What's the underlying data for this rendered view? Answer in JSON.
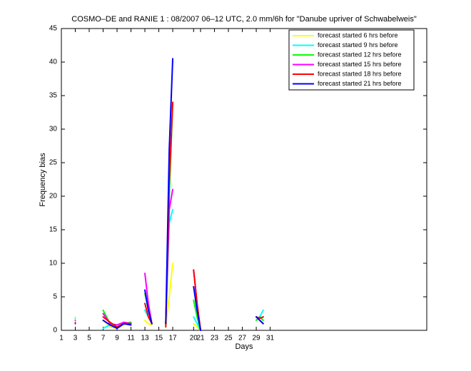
{
  "chart_data": {
    "type": "line",
    "title": "COSMO–DE and RANIE 1 : 08/2007 06–12 UTC, 2.0 mm/6h for \"Danube upriver of Schwabelweis\"",
    "xlabel": "Days",
    "ylabel": "Frequency bias",
    "x": [
      3,
      5,
      7,
      8,
      9,
      10,
      11,
      12,
      13,
      13.5,
      14,
      15,
      16,
      16.5,
      17,
      19,
      20,
      20.5,
      21,
      25,
      29,
      29.5,
      30
    ],
    "series": [
      {
        "name": "forecast started 6 hrs before",
        "color": "#ffff00",
        "values": [
          2,
          null,
          1.5,
          0.5,
          0.3,
          0.8,
          1,
          null,
          1.5,
          1,
          0.8,
          null,
          0.5,
          5,
          10,
          null,
          1,
          0.5,
          0,
          null,
          2,
          1.5,
          1
        ]
      },
      {
        "name": "forecast started 9 hrs before",
        "color": "#00ffff",
        "values": [
          1.8,
          null,
          0.3,
          0.8,
          0.5,
          1,
          1.2,
          null,
          3,
          2,
          1,
          null,
          1,
          16,
          18,
          null,
          2,
          1,
          0,
          null,
          1.5,
          2,
          3
        ]
      },
      {
        "name": "forecast started 12 hrs before",
        "color": "#00ff00",
        "values": [
          1.5,
          null,
          3,
          1,
          0.5,
          1,
          1.2,
          null,
          5.5,
          3,
          1,
          null,
          1,
          20,
          34,
          null,
          4.5,
          2,
          0,
          null,
          1.5,
          2,
          1.5
        ]
      },
      {
        "name": "forecast started 15 hrs before",
        "color": "#ff00ff",
        "values": [
          1.5,
          null,
          2.5,
          1,
          0.8,
          1.2,
          1,
          null,
          8.5,
          4,
          1,
          null,
          1,
          18,
          21,
          null,
          9,
          4,
          0,
          null,
          2,
          1.8,
          2
        ]
      },
      {
        "name": "forecast started 18 hrs before",
        "color": "#ff0000",
        "values": [
          1.2,
          null,
          2,
          1.2,
          0.5,
          1,
          1,
          null,
          4,
          2,
          1,
          null,
          0.5,
          22,
          34,
          null,
          9,
          4,
          0,
          null,
          2,
          1.8,
          2
        ]
      },
      {
        "name": "forecast started 21 hrs before",
        "color": "#0000ff",
        "values": [
          1,
          null,
          1.5,
          0.8,
          0.3,
          1,
          0.8,
          null,
          6,
          3,
          1,
          null,
          1,
          27,
          40.5,
          null,
          6.5,
          3,
          0,
          null,
          2,
          1.5,
          1
        ]
      }
    ],
    "xlim": [
      1,
      53.5
    ],
    "xticks": [
      1,
      3,
      5,
      7,
      9,
      11,
      13,
      15,
      17,
      20,
      21,
      23,
      25,
      27,
      29,
      31
    ],
    "ylim": [
      0,
      45
    ],
    "yticks": [
      0,
      5,
      10,
      15,
      20,
      25,
      30,
      35,
      40,
      45
    ],
    "grid": false,
    "legend": "upper right"
  }
}
